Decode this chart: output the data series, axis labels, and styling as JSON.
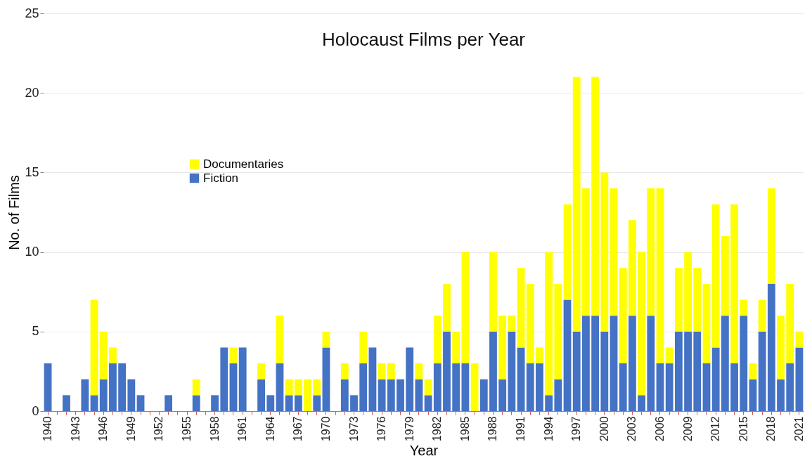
{
  "chart_data": {
    "type": "bar",
    "title": "Holocaust Films per Year",
    "xlabel": "Year",
    "ylabel": "No. of Films",
    "categories": [
      "1940",
      null,
      null,
      "1943",
      null,
      null,
      "1946",
      null,
      null,
      "1949",
      null,
      null,
      "1952",
      null,
      null,
      "1955",
      null,
      null,
      "1958",
      null,
      null,
      "1961",
      null,
      null,
      "1964",
      null,
      null,
      "1967",
      null,
      null,
      "1970",
      null,
      null,
      "1973",
      null,
      null,
      "1976",
      null,
      null,
      "1979",
      null,
      null,
      "1982",
      null,
      null,
      "1985",
      null,
      null,
      "1988",
      null,
      null,
      "1991",
      null,
      null,
      "1994",
      null,
      null,
      "1997",
      null,
      null,
      "2000",
      null,
      null,
      "2003",
      null,
      null,
      "2006",
      null,
      null,
      "2009",
      null,
      null,
      "2012",
      null,
      null,
      "2015",
      null,
      null,
      "2018",
      null,
      null,
      "2021"
    ],
    "stacked": true,
    "series": [
      {
        "name": "Fiction",
        "color": "#4472c4",
        "values": [
          3,
          0,
          1,
          0,
          2,
          1,
          2,
          3,
          3,
          2,
          1,
          0,
          0,
          1,
          0,
          0,
          1,
          0,
          1,
          4,
          3,
          4,
          0,
          2,
          1,
          3,
          1,
          1,
          0,
          1,
          4,
          0,
          2,
          1,
          3,
          4,
          2,
          2,
          2,
          4,
          2,
          1,
          3,
          5,
          3,
          3,
          0,
          2,
          5,
          2,
          5,
          4,
          3,
          3,
          1,
          2,
          7,
          5,
          6,
          6,
          5,
          6,
          3,
          6,
          1,
          6,
          3,
          3,
          5,
          5,
          5,
          3,
          4,
          6,
          3,
          6,
          2,
          5,
          8,
          2,
          3,
          4
        ]
      },
      {
        "name": "Documentaries",
        "color": "#ffff00",
        "values": [
          0,
          0,
          0,
          0,
          0,
          6,
          3,
          1,
          0,
          0,
          0,
          0,
          0,
          0,
          0,
          0,
          1,
          0,
          0,
          0,
          1,
          0,
          0,
          1,
          0,
          3,
          1,
          1,
          2,
          1,
          1,
          0,
          1,
          0,
          2,
          0,
          1,
          1,
          0,
          0,
          1,
          1,
          3,
          3,
          2,
          7,
          3,
          0,
          5,
          4,
          1,
          5,
          5,
          1,
          9,
          6,
          6,
          16,
          8,
          15,
          10,
          8,
          6,
          6,
          9,
          8,
          11,
          1,
          4,
          5,
          4,
          5,
          9,
          5,
          10,
          1,
          1,
          2,
          6,
          4,
          5,
          1
        ]
      }
    ],
    "ylim": [
      0,
      25
    ],
    "yticks": [
      0,
      5,
      10,
      15,
      20,
      25
    ],
    "grid": "y",
    "legend": "top left"
  }
}
